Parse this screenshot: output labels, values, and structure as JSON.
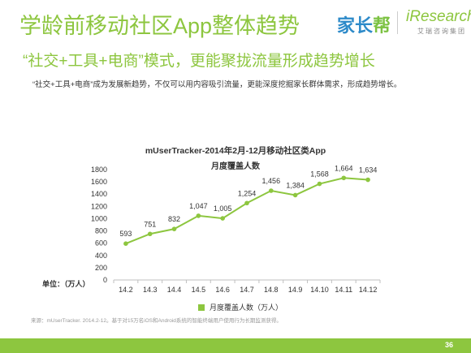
{
  "header": {
    "title": "学龄前移动社区App整体趋势",
    "subtitle": "“社交+工具+电商”模式，更能聚拢流量形成趋势增长",
    "logo_cn_part1": "家长",
    "logo_cn_part2": "帮",
    "logo_ir": "iResearch",
    "logo_ir_sub": "艾瑞咨询集团"
  },
  "description": "“社交+工具+电商”成为发展新趋势，不仅可以用内容吸引流量，更能深度挖掘家长群体需求，形成趋势增长。",
  "chart_data": {
    "type": "line",
    "title": "mUserTracker-2014年2月-12月移动社区类App",
    "subtitle": "月度覆盖人数",
    "unit_label": "单位：（万人）",
    "categories": [
      "14.2",
      "14.3",
      "14.4",
      "14.5",
      "14.6",
      "14.7",
      "14.8",
      "14.9",
      "14.10",
      "14.11",
      "14.12"
    ],
    "series": [
      {
        "name": "月度覆盖人数（万人）",
        "values": [
          593,
          751,
          832,
          1047,
          1005,
          1254,
          1456,
          1384,
          1568,
          1664,
          1634
        ]
      }
    ],
    "data_labels": [
      "593",
      "751",
      "832",
      "1,047",
      "1,005",
      "1,254",
      "1,456",
      "1,384",
      "1,568",
      "1,664",
      "1,634"
    ],
    "ylim": [
      0,
      1800
    ],
    "yticks": [
      0,
      200,
      400,
      600,
      800,
      1000,
      1200,
      1400,
      1600,
      1800
    ],
    "grid": false,
    "legend_position": "bottom",
    "color": "#8dc63f"
  },
  "source": "来源：mUserTracker. 2014.2-12。基于对15万名iOS和Android系统的智能终端用户使用行为长期监测获得。",
  "page_number": "36"
}
